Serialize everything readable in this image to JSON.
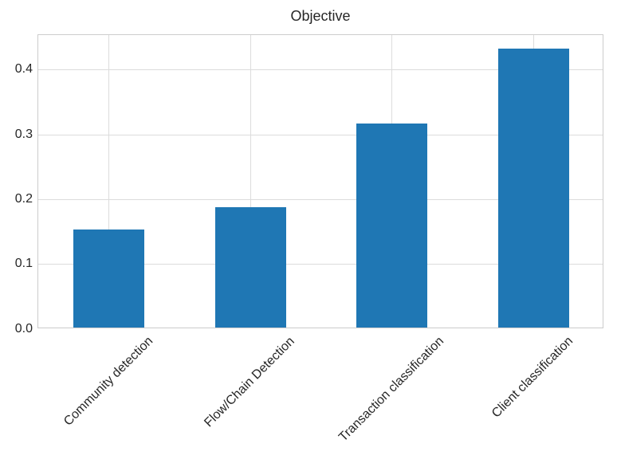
{
  "chart_data": {
    "type": "bar",
    "title": "Objective",
    "xlabel": "",
    "ylabel": "",
    "categories": [
      "Community detection",
      "Flow/Chain Detection",
      "Transaction classification",
      "Client classification"
    ],
    "values": [
      0.151,
      0.186,
      0.315,
      0.431
    ],
    "yticks": [
      "0.0",
      "0.1",
      "0.2",
      "0.3",
      "0.4"
    ],
    "ytick_values": [
      0.0,
      0.1,
      0.2,
      0.3,
      0.4
    ],
    "ylim": [
      0,
      0.454
    ],
    "grid": true,
    "legend": null,
    "bar_color": "#1f77b4",
    "grid_color": "#dcdcdc",
    "spine_color": "#cccccc",
    "text_color": "#262626",
    "background_color": "#ffffff"
  }
}
